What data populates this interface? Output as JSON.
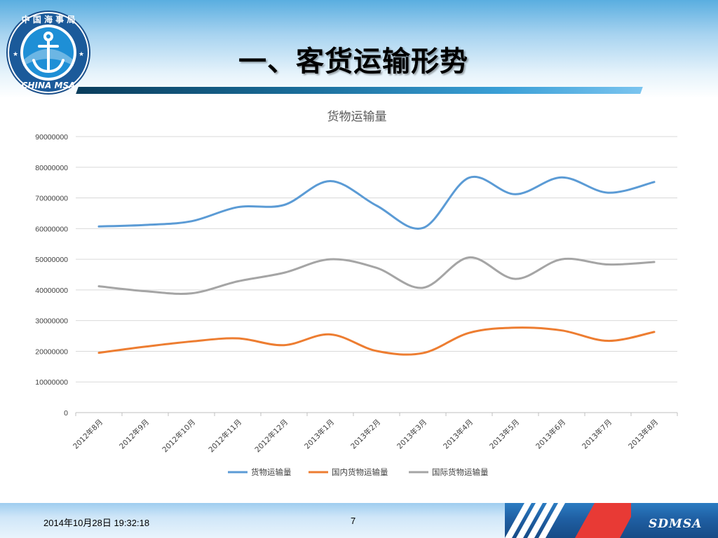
{
  "header": {
    "title": "一、客货运输形势",
    "logo": {
      "ring_text": "中 国 海 事 局",
      "bottom_text": "CHINA MSA",
      "icon": "anchor-icon"
    }
  },
  "chart_data": {
    "type": "line",
    "title": "货物运输量",
    "categories": [
      "2012年8月",
      "2012年9月",
      "2012年10月",
      "2012年11月",
      "2012年12月",
      "2013年1月",
      "2013年2月",
      "2013年3月",
      "2013年4月",
      "2013年5月",
      "2013年6月",
      "2013年7月",
      "2013年8月"
    ],
    "yticks": [
      "0",
      "10000000",
      "20000000",
      "30000000",
      "40000000",
      "50000000",
      "60000000",
      "70000000",
      "80000000",
      "90000000"
    ],
    "ylim": [
      0,
      90000000
    ],
    "grid": true,
    "legend": "bottom",
    "series": [
      {
        "name": "货物运输量",
        "color": "#5b9bd5",
        "values": [
          60700000,
          61200000,
          62400000,
          67000000,
          67700000,
          75500000,
          67500000,
          60200000,
          76600000,
          71200000,
          76700000,
          71700000,
          75200000
        ]
      },
      {
        "name": "国内货物运输量",
        "color": "#ed7d31",
        "values": [
          19500000,
          21500000,
          23200000,
          24200000,
          22000000,
          25500000,
          20100000,
          19400000,
          26000000,
          27700000,
          26800000,
          23400000,
          26300000
        ]
      },
      {
        "name": "国际货物运输量",
        "color": "#a5a5a5",
        "values": [
          41200000,
          39600000,
          38900000,
          42800000,
          45600000,
          50000000,
          47200000,
          40700000,
          50600000,
          43600000,
          50000000,
          48300000,
          49100000
        ]
      }
    ]
  },
  "footer": {
    "datetime": "2014年10月28日  19:32:18",
    "page_number": "7",
    "brand": "SDMSA"
  }
}
